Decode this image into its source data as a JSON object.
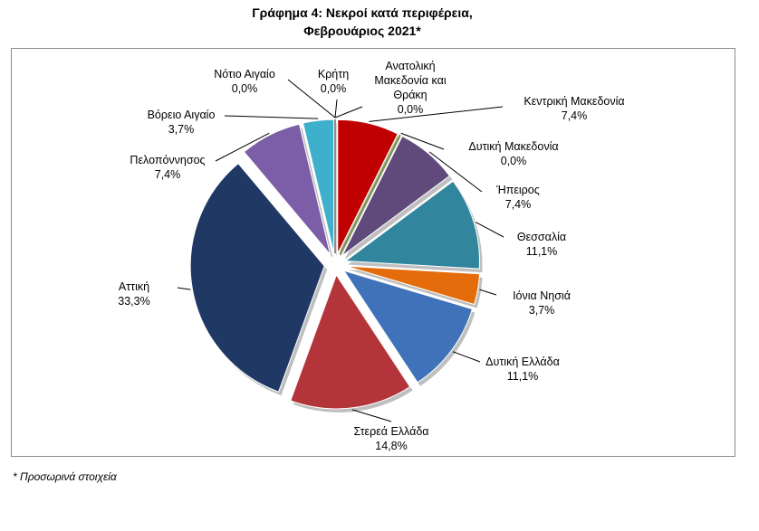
{
  "chart_data": {
    "type": "pie",
    "title": [
      "Γράφημα 4: Νεκροί κατά περιφέρεια,",
      "Φεβρουάριος 2021*"
    ],
    "categories": [
      "Ανατολική Μακεδονία και Θράκη",
      "Κεντρική Μακεδονία",
      "Δυτική Μακεδονία",
      "Ήπειρος",
      "Θεσσαλία",
      "Ιόνια Νησιά",
      "Δυτική Ελλάδα",
      "Στερεά Ελλάδα",
      "Αττική",
      "Πελοπόννησος",
      "Βόρειο Αιγαίο",
      "Νότιο Αιγαίο",
      "Κρήτη"
    ],
    "values": [
      0,
      7.4,
      0,
      7.4,
      11.1,
      3.7,
      11.1,
      14.8,
      33.3,
      7.4,
      3.7,
      0,
      0
    ],
    "value_labels": [
      "0,0%",
      "7,4%",
      "0,0%",
      "7,4%",
      "11,1%",
      "3,7%",
      "11,1%",
      "14,8%",
      "33,3%",
      "7,4%",
      "3,7%",
      "0,0%",
      "0,0%"
    ],
    "colors": [
      "#c0504d",
      "#c00000",
      "#77933c",
      "#5f4a7b",
      "#31859c",
      "#e46c0a",
      "#3f72b8",
      "#b3353a",
      "#1f3864",
      "#7b5ea7",
      "#3fb0cc",
      "#8c8c8c",
      "#8c8c8c"
    ],
    "footnote": "* Προσωρινά στοιχεία"
  }
}
